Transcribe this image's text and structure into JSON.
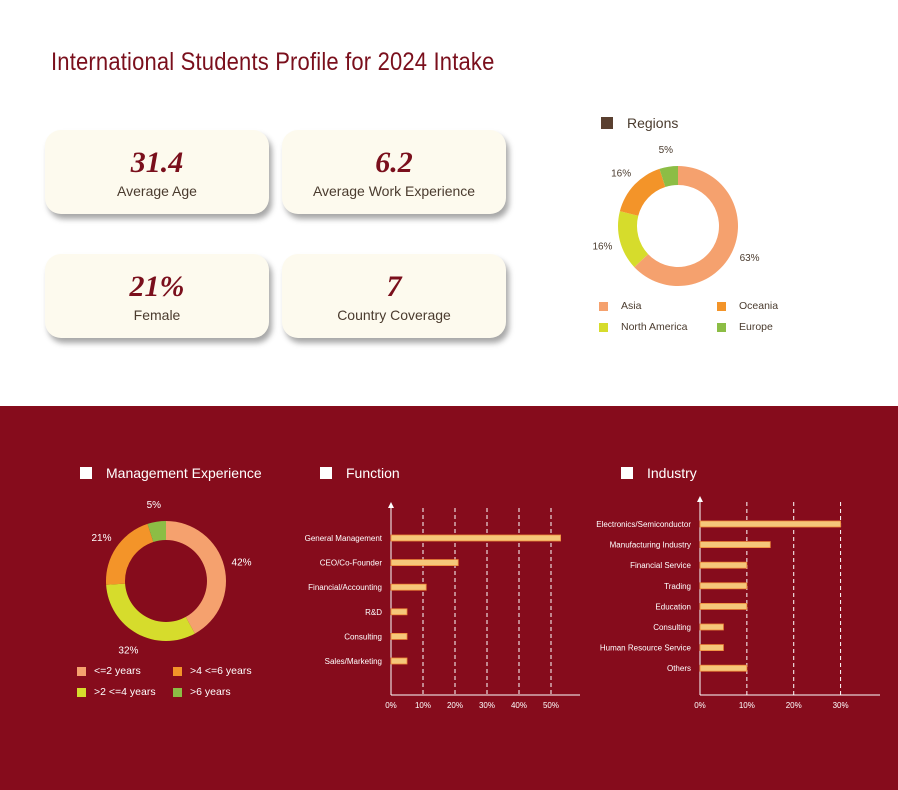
{
  "page": {
    "title": "International Students Profile for 2024 Intake"
  },
  "stats": [
    {
      "value": "31.4",
      "label": "Average Age"
    },
    {
      "value": "6.2",
      "label": "Average Work Experience"
    },
    {
      "value": "21%",
      "label": "Female"
    },
    {
      "value": "7",
      "label": "Country Coverage"
    }
  ],
  "colors": {
    "brand": "#860c1c",
    "title": "#7a0f1c",
    "card_bg": "#fdfaee",
    "bar": "#f5c77a"
  },
  "chart_data": [
    {
      "type": "pie",
      "variant": "donut",
      "title": "Regions",
      "slices": [
        {
          "label": "Asia",
          "value": 63,
          "display": "63%",
          "color": "#f5a16e"
        },
        {
          "label": "North America",
          "value": 16,
          "display": "16%",
          "color": "#d6dc2c"
        },
        {
          "label": "Oceania",
          "value": 16,
          "display": "16%",
          "color": "#f39429"
        },
        {
          "label": "Europe",
          "value": 5,
          "display": "5%",
          "color": "#8cbd45"
        }
      ],
      "legend": [
        {
          "label": "Asia",
          "color": "#f5a16e"
        },
        {
          "label": "Oceania",
          "color": "#f39429"
        },
        {
          "label": "North America",
          "color": "#d6dc2c"
        },
        {
          "label": "Europe",
          "color": "#8cbd45"
        }
      ],
      "legend_position": "bottom"
    },
    {
      "type": "pie",
      "variant": "donut",
      "title": "Management Experience",
      "slices": [
        {
          "label": "<=2 years",
          "value": 42,
          "display": "42%",
          "color": "#f5a16e"
        },
        {
          "label": ">2 <=4 years",
          "value": 32,
          "display": "32%",
          "color": "#d6dc2c"
        },
        {
          "label": ">4 <=6 years",
          "value": 21,
          "display": "21%",
          "color": "#f39429"
        },
        {
          "label": ">6 years",
          "value": 5,
          "display": "5%",
          "color": "#8cbd45"
        }
      ],
      "legend": [
        {
          "label": "<=2 years",
          "color": "#f5a16e"
        },
        {
          "label": ">4 <=6 years",
          "color": "#f39429"
        },
        {
          "label": ">2 <=4 years",
          "color": "#d6dc2c"
        },
        {
          "label": ">6 years",
          "color": "#8cbd45"
        }
      ],
      "legend_position": "bottom"
    },
    {
      "type": "bar",
      "orientation": "horizontal",
      "title": "Function",
      "categories": [
        "General Management",
        "CEO/Co-Founder",
        "Financial/Accounting",
        "R&D",
        "Consulting",
        "Sales/Marketing"
      ],
      "values": [
        53,
        21,
        11,
        5,
        5,
        5
      ],
      "xlim": [
        0,
        55
      ],
      "xticks": [
        0,
        10,
        20,
        30,
        40,
        50
      ],
      "xtick_labels": [
        "0%",
        "10%",
        "20%",
        "30%",
        "40%",
        "50%"
      ],
      "grid": "vertical dashed"
    },
    {
      "type": "bar",
      "orientation": "horizontal",
      "title": "Industry",
      "categories": [
        "Electronics/Semiconductor",
        "Manufacturing Industry",
        "Financial Service",
        "Trading",
        "Education",
        "Consulting",
        "Human Resource Service",
        "Others"
      ],
      "values": [
        30,
        15,
        10,
        10,
        10,
        5,
        5,
        10
      ],
      "xlim": [
        0,
        35
      ],
      "xticks": [
        0,
        10,
        20,
        30
      ],
      "xtick_labels": [
        "0%",
        "10%",
        "20%",
        "30%"
      ],
      "grid": "vertical dashed"
    }
  ]
}
